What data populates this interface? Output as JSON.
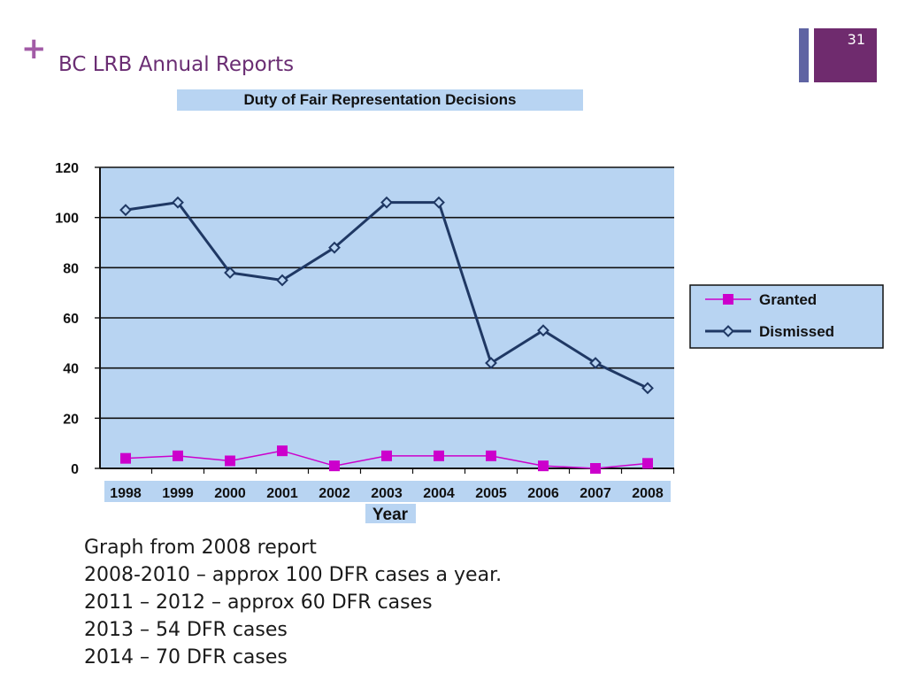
{
  "slide": {
    "title": "BC LRB Annual Reports",
    "number": "31",
    "plus_icon": "plus-icon",
    "accent_color": "#6f2b6e",
    "notes": [
      "Graph from 2008 report",
      "2008-2010 – approx 100 DFR cases a year.",
      "2011 – 2012 – approx 60 DFR cases",
      "2013 – 54 DFR cases",
      "2014 – 70 DFR cases"
    ]
  },
  "chart_data": {
    "type": "line",
    "title": "Duty of Fair Representation Decisions",
    "xlabel": "Year",
    "ylabel": "",
    "categories": [
      "1998",
      "1999",
      "2000",
      "2001",
      "2002",
      "2003",
      "2004",
      "2005",
      "2006",
      "2007",
      "2008"
    ],
    "ylim": [
      0,
      120
    ],
    "yticks": [
      0,
      20,
      40,
      60,
      80,
      100,
      120
    ],
    "grid": true,
    "legend_position": "right",
    "plot_background": "#b8d4f2",
    "series": [
      {
        "name": "Granted",
        "color": "#cc00cc",
        "marker": "square",
        "values": [
          4,
          5,
          3,
          7,
          1,
          5,
          5,
          5,
          1,
          0,
          2
        ]
      },
      {
        "name": "Dismissed",
        "color": "#1f3864",
        "marker": "diamond",
        "values": [
          103,
          106,
          78,
          75,
          88,
          106,
          106,
          42,
          55,
          42,
          32
        ]
      }
    ]
  }
}
